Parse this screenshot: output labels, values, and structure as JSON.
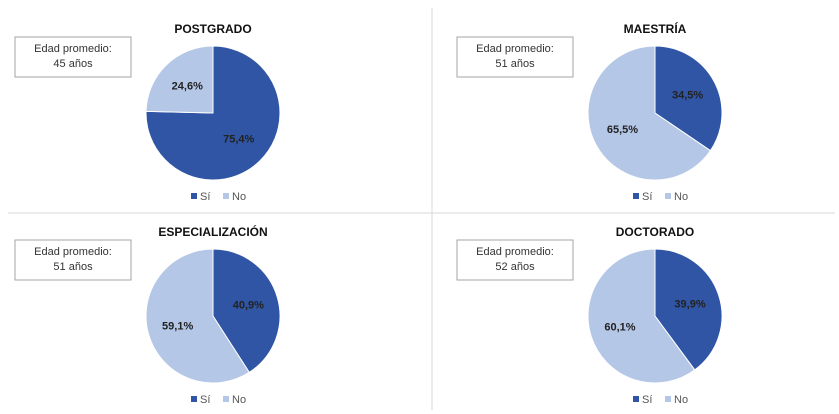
{
  "chart_data": [
    {
      "type": "pie",
      "title": "POSTGRADO",
      "annotation": [
        "Edad promedio:",
        "45 años"
      ],
      "categories": [
        "Sí",
        "No"
      ],
      "values": [
        75.4,
        24.6
      ],
      "value_labels": [
        "75,4%",
        "24,6%"
      ],
      "colors": [
        "#2f55a4",
        "#b4c7e7"
      ],
      "legend": "bottom"
    },
    {
      "type": "pie",
      "title": "MAESTRÍA",
      "annotation": [
        "Edad promedio:",
        "51 años"
      ],
      "categories": [
        "Sí",
        "No"
      ],
      "values": [
        34.5,
        65.5
      ],
      "value_labels": [
        "34,5%",
        "65,5%"
      ],
      "colors": [
        "#2f55a4",
        "#b4c7e7"
      ],
      "legend": "bottom"
    },
    {
      "type": "pie",
      "title": "ESPECIALIZACIÓN",
      "annotation": [
        "Edad promedio:",
        "51 años"
      ],
      "categories": [
        "Sí",
        "No"
      ],
      "values": [
        40.9,
        59.1
      ],
      "value_labels": [
        "40,9%",
        "59,1%"
      ],
      "colors": [
        "#2f55a4",
        "#b4c7e7"
      ],
      "legend": "bottom"
    },
    {
      "type": "pie",
      "title": "DOCTORADO",
      "annotation": [
        "Edad promedio:",
        "52 años"
      ],
      "categories": [
        "Sí",
        "No"
      ],
      "values": [
        39.9,
        60.1
      ],
      "value_labels": [
        "39,9%",
        "60,1%"
      ],
      "colors": [
        "#2f55a4",
        "#b4c7e7"
      ],
      "legend": "bottom"
    }
  ]
}
